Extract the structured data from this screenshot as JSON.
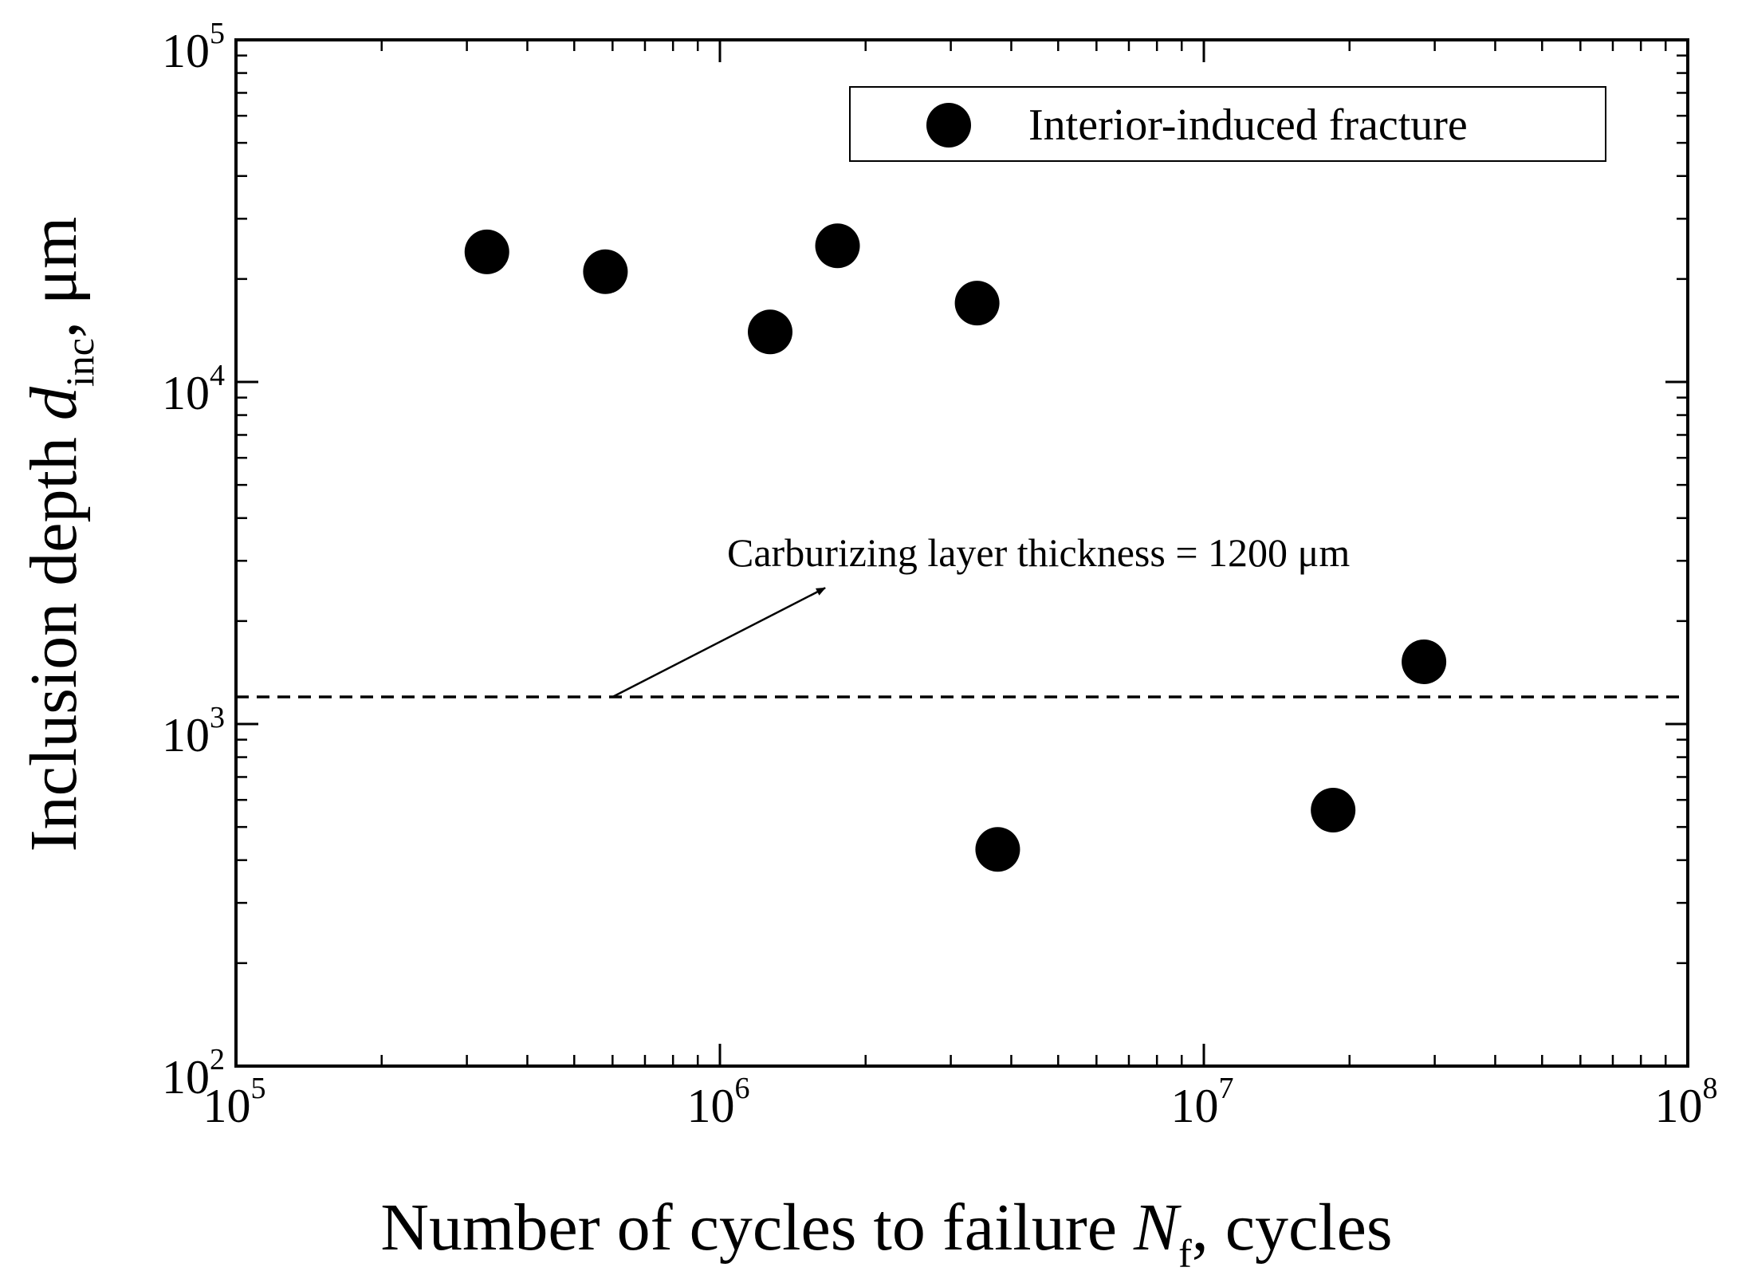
{
  "chart_data": {
    "type": "scatter",
    "xscale": "log",
    "yscale": "log",
    "xlim": [
      100000,
      100000000
    ],
    "ylim": [
      100,
      100000
    ],
    "xlabel": {
      "main": "Number of cycles to failure ",
      "var": "N",
      "sub": "f",
      "tail": ", cycles"
    },
    "ylabel": {
      "main": "Inclusion depth ",
      "var": "d",
      "sub": "inc",
      "tail": ", μm"
    },
    "x_ticks": [
      {
        "value": 100000,
        "base": "10",
        "exp": "5"
      },
      {
        "value": 1000000,
        "base": "10",
        "exp": "6"
      },
      {
        "value": 10000000,
        "base": "10",
        "exp": "7"
      },
      {
        "value": 100000000,
        "base": "10",
        "exp": "8"
      }
    ],
    "y_ticks": [
      {
        "value": 100,
        "base": "10",
        "exp": "2"
      },
      {
        "value": 1000,
        "base": "10",
        "exp": "3"
      },
      {
        "value": 10000,
        "base": "10",
        "exp": "4"
      },
      {
        "value": 100000,
        "base": "10",
        "exp": "5"
      }
    ],
    "grid": false,
    "legend": {
      "position": "top-right",
      "entries": [
        "Interior-induced fracture"
      ]
    },
    "series": [
      {
        "name": "Interior-induced fracture",
        "marker": "filled-circle",
        "color": "#000000",
        "points": [
          {
            "x": 330000,
            "y": 24000
          },
          {
            "x": 580000,
            "y": 21000
          },
          {
            "x": 1270000,
            "y": 14000
          },
          {
            "x": 1750000,
            "y": 25000
          },
          {
            "x": 3400000,
            "y": 17000
          },
          {
            "x": 3750000,
            "y": 430
          },
          {
            "x": 18500000,
            "y": 560
          },
          {
            "x": 28500000,
            "y": 1520
          }
        ]
      }
    ],
    "reference_line": {
      "y": 1200,
      "style": "dashed"
    },
    "annotation": {
      "text": "Carburizing layer thickness = 1200 μm",
      "arrow_from": {
        "x": 600000,
        "y": 1200
      },
      "arrow_to": {
        "x": 1650000,
        "y": 2500
      }
    }
  }
}
